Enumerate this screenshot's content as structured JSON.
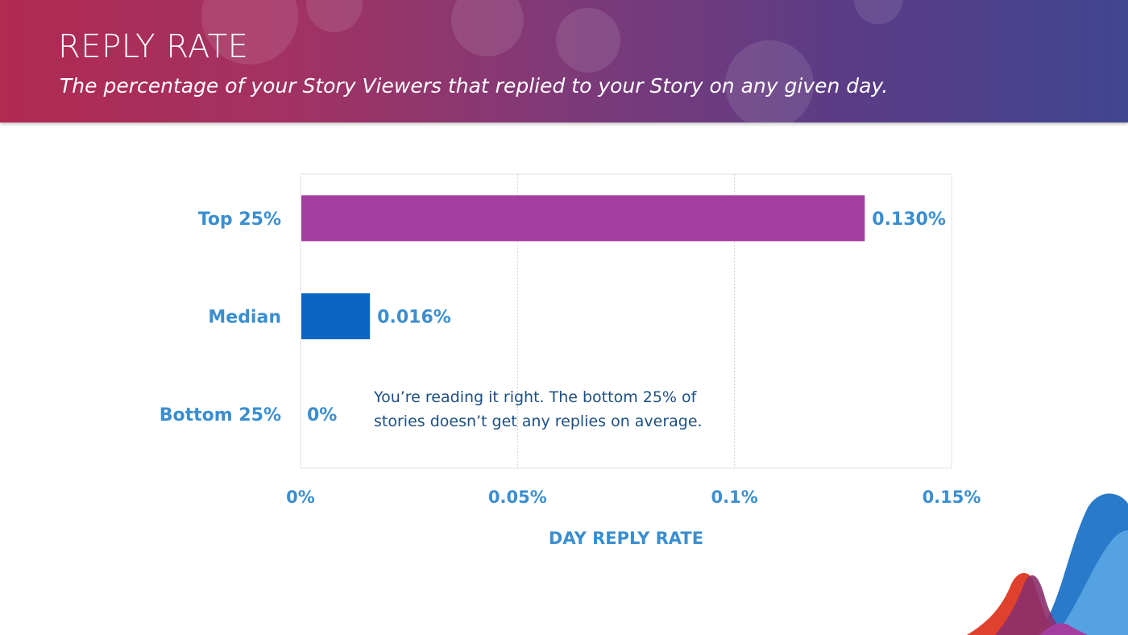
{
  "header": {
    "title": "REPLY RATE",
    "subtitle": "The percentage of your Story Viewers that replied to your Story on any given day."
  },
  "chart_data": {
    "type": "bar",
    "orientation": "horizontal",
    "categories": [
      "Top 25%",
      "Median",
      "Bottom 25%"
    ],
    "values": [
      0.13,
      0.016,
      0
    ],
    "value_labels": [
      "0.130%",
      "0.016%",
      "0%"
    ],
    "colors": [
      "#a33e9f",
      "#0a66c2",
      "#3b8ed0"
    ],
    "xlabel": "DAY REPLY RATE",
    "ylabel": "",
    "xlim": [
      0,
      0.15
    ],
    "xticks": [
      0,
      0.05,
      0.1,
      0.15
    ],
    "xtick_labels": [
      "0%",
      "0.05%",
      "0.1%",
      "0.15%"
    ],
    "grid": true,
    "annotation": "You’re reading it right. The bottom 25% of stories doesn’t get any replies on average."
  }
}
